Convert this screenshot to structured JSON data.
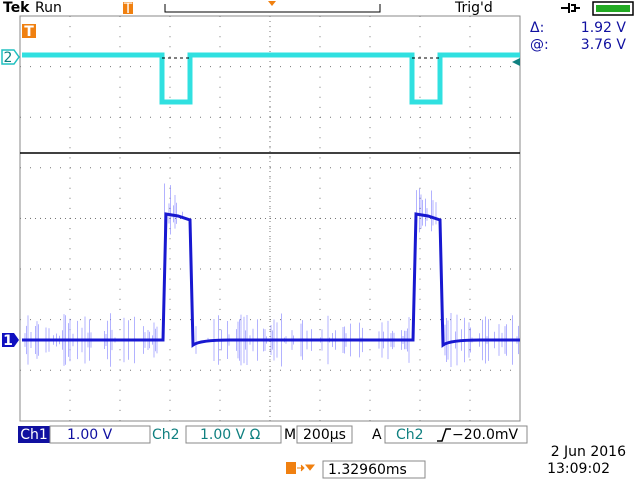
{
  "header": {
    "brand": "Tek",
    "state": "Run",
    "trigger_status": "Trig'd"
  },
  "cursor_readout": {
    "delta_label": "Δ:",
    "delta": "1.92 V",
    "at_label": "@:",
    "at": "3.76 V"
  },
  "markers": {
    "ch2": "2",
    "ch1": "1",
    "trigger": "T"
  },
  "status_bar": {
    "ch1_label": "Ch1",
    "ch1_scale": "1.00 V",
    "ch2_label": "Ch2",
    "ch2_scale": "1.00 V Ω",
    "timebase_label": "M",
    "timebase": "200µs",
    "trigger_label": "A",
    "trigger_source": "Ch2",
    "trigger_level": "−20.0mV"
  },
  "footer": {
    "trigger_position": "1.32960ms",
    "date": "2 Jun 2016",
    "time": "13:09:02"
  }
}
